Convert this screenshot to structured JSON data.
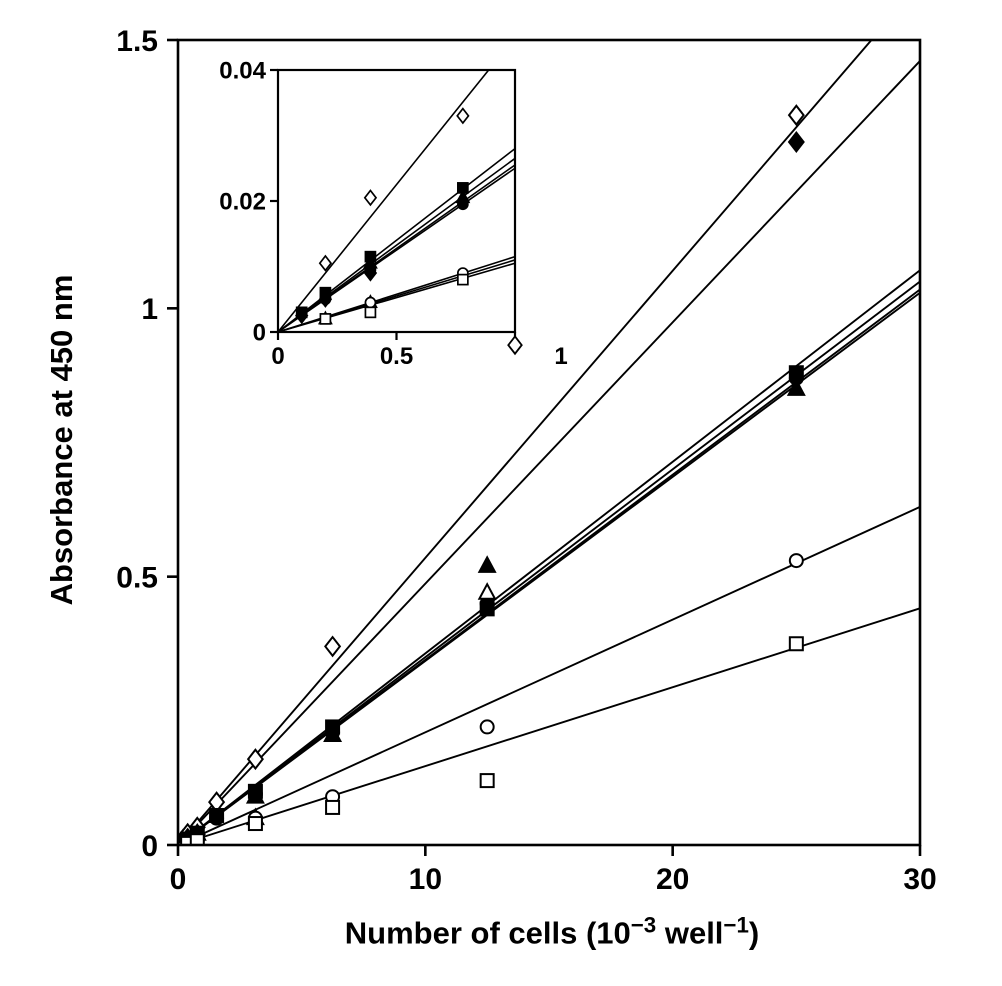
{
  "figure": {
    "background_color": "#ffffff",
    "line_color": "#000000"
  },
  "chart_data": {
    "type": "scatter",
    "title": "",
    "xlabel": "Number of cells (10⁻³ well⁻¹)",
    "xlabel_parts": {
      "prefix": "Number of cells (10",
      "sup1": "−3",
      "mid": " well",
      "sup2": "−1",
      "suffix": ")"
    },
    "ylabel": "Absorbance at 450 nm",
    "xlim": [
      0,
      30
    ],
    "ylim": [
      0,
      1.5
    ],
    "x_ticks": [
      "0",
      "10",
      "20",
      "30"
    ],
    "x_tick_values": [
      0,
      10,
      20,
      30
    ],
    "y_ticks": [
      "0",
      "0.5",
      "1",
      "1.5"
    ],
    "y_tick_values": [
      0,
      0.5,
      1,
      1.5
    ],
    "grid": false,
    "legend_position": "none",
    "axis_color": "#000000",
    "series": [
      {
        "name": "open-diamond",
        "marker": "diamond",
        "fill": "open",
        "line_slope": 0.0535,
        "points": [
          [
            0.2,
            0.01
          ],
          [
            0.39,
            0.021
          ],
          [
            0.78,
            0.033
          ],
          [
            1.56,
            0.08
          ],
          [
            3.13,
            0.16
          ],
          [
            6.25,
            0.37
          ],
          [
            25,
            1.36
          ]
        ]
      },
      {
        "name": "filled-diamond",
        "marker": "diamond",
        "fill": "filled",
        "line_slope": 0.0487,
        "points": [
          [
            0.2,
            0.005
          ],
          [
            0.39,
            0.012
          ],
          [
            0.78,
            0.02
          ],
          [
            25,
            1.31
          ]
        ]
      },
      {
        "name": "filled-square",
        "marker": "square",
        "fill": "filled",
        "line_slope": 0.0357,
        "points": [
          [
            0.2,
            0.006
          ],
          [
            0.39,
            0.011
          ],
          [
            0.78,
            0.022
          ],
          [
            1.56,
            0.055
          ],
          [
            3.13,
            0.1
          ],
          [
            6.25,
            0.22
          ],
          [
            12.5,
            0.44
          ],
          [
            25,
            0.88
          ]
        ]
      },
      {
        "name": "filled-circle",
        "marker": "circle",
        "fill": "filled",
        "line_slope": 0.035,
        "points": [
          [
            0.2,
            0.005
          ],
          [
            0.39,
            0.0095
          ],
          [
            0.78,
            0.0195
          ],
          [
            1.56,
            0.05
          ],
          [
            3.13,
            0.095
          ],
          [
            6.25,
            0.21
          ],
          [
            12.5,
            0.45
          ],
          [
            25,
            0.87
          ]
        ]
      },
      {
        "name": "filled-triangle",
        "marker": "triangle",
        "fill": "filled",
        "line_slope": 0.0345,
        "points": [
          [
            0.39,
            0.0105
          ],
          [
            0.78,
            0.021
          ],
          [
            3.13,
            0.09
          ],
          [
            6.25,
            0.205
          ],
          [
            12.5,
            0.52
          ],
          [
            25,
            0.85
          ]
        ]
      },
      {
        "name": "open-triangle",
        "marker": "triangle",
        "fill": "open",
        "line_slope": 0.0343,
        "points": [
          [
            0.2,
            0.002
          ],
          [
            0.39,
            0.004
          ],
          [
            3.13,
            0.05
          ],
          [
            12.5,
            0.47
          ]
        ]
      },
      {
        "name": "open-circle",
        "marker": "circle",
        "fill": "open",
        "line_slope": 0.021,
        "points": [
          [
            0.39,
            0.0045
          ],
          [
            0.78,
            0.009
          ],
          [
            3.13,
            0.05
          ],
          [
            6.25,
            0.09
          ],
          [
            12.5,
            0.22
          ],
          [
            25,
            0.53
          ]
        ]
      },
      {
        "name": "open-square",
        "marker": "square",
        "fill": "open",
        "line_slope": 0.0147,
        "points": [
          [
            0.39,
            0.003
          ],
          [
            0.78,
            0.008
          ],
          [
            3.13,
            0.04
          ],
          [
            6.25,
            0.07
          ],
          [
            12.5,
            0.12
          ],
          [
            25,
            0.375
          ]
        ]
      }
    ],
    "inset": {
      "xlim": [
        0,
        1
      ],
      "ylim": [
        0,
        0.04
      ],
      "x_ticks": [
        "0",
        "0.5",
        "1"
      ],
      "x_tick_values": [
        0,
        0.5,
        1
      ],
      "y_ticks": [
        "0",
        "0.02",
        "0.04"
      ],
      "y_tick_values": [
        0,
        0.02,
        0.04
      ],
      "series": [
        {
          "name": "open-diamond",
          "marker": "diamond",
          "fill": "open",
          "line_slope": 0.045,
          "points": [
            [
              0.2,
              0.0105
            ],
            [
              0.39,
              0.0205
            ],
            [
              0.78,
              0.033
            ]
          ]
        },
        {
          "name": "filled-square",
          "marker": "square",
          "fill": "filled",
          "line_slope": 0.028,
          "points": [
            [
              0.1,
              0.003
            ],
            [
              0.2,
              0.006
            ],
            [
              0.39,
              0.0115
            ],
            [
              0.78,
              0.022
            ]
          ]
        },
        {
          "name": "filled-triangle",
          "marker": "triangle",
          "fill": "filled",
          "line_slope": 0.0265,
          "points": [
            [
              0.39,
              0.0105
            ],
            [
              0.78,
              0.0205
            ]
          ]
        },
        {
          "name": "filled-circle",
          "marker": "circle",
          "fill": "filled",
          "line_slope": 0.025,
          "points": [
            [
              0.2,
              0.005
            ],
            [
              0.39,
              0.0095
            ],
            [
              0.78,
              0.0195
            ]
          ]
        },
        {
          "name": "filled-diamond",
          "marker": "diamond",
          "fill": "filled",
          "line_slope": 0.0255,
          "points": [
            [
              0.1,
              0.0025
            ],
            [
              0.2,
              0.005
            ],
            [
              0.39,
              0.009
            ],
            [
              0.78,
              0.02
            ]
          ]
        },
        {
          "name": "open-triangle",
          "marker": "triangle",
          "fill": "open",
          "line_slope": 0.011,
          "points": [
            [
              0.2,
              0.002
            ],
            [
              0.39,
              0.0045
            ]
          ]
        },
        {
          "name": "open-circle",
          "marker": "circle",
          "fill": "open",
          "line_slope": 0.0115,
          "points": [
            [
              0.39,
              0.0045
            ],
            [
              0.78,
              0.009
            ]
          ]
        },
        {
          "name": "open-square",
          "marker": "square",
          "fill": "open",
          "line_slope": 0.0105,
          "points": [
            [
              0.2,
              0.002
            ],
            [
              0.39,
              0.003
            ],
            [
              0.78,
              0.008
            ]
          ]
        }
      ],
      "stray_marker": {
        "marker": "diamond",
        "fill": "open",
        "x": 1.0,
        "y": -0.002
      }
    }
  }
}
